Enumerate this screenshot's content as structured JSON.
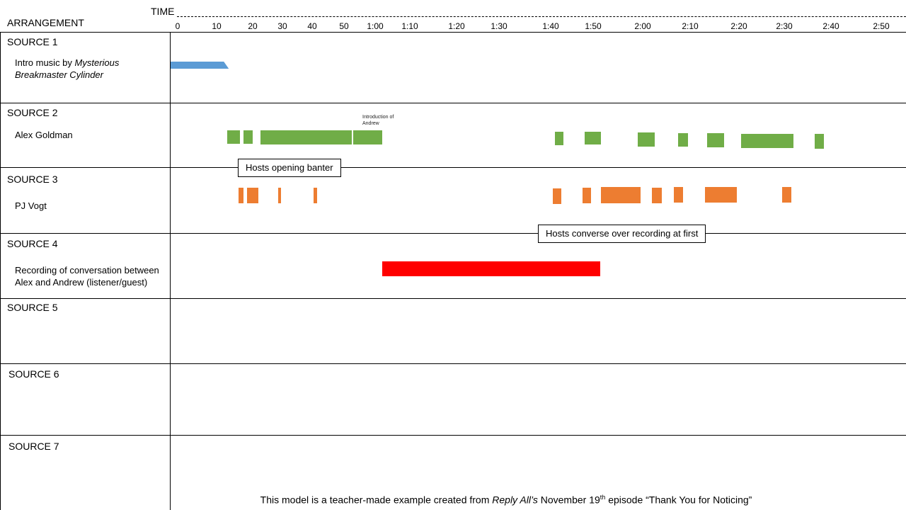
{
  "header": {
    "arrangement_label": "ARRANGEMENT",
    "time_label": "TIME",
    "ticks": [
      {
        "label": "0",
        "seconds": 0
      },
      {
        "label": "10",
        "seconds": 10
      },
      {
        "label": "20",
        "seconds": 20
      },
      {
        "label": "30",
        "seconds": 30
      },
      {
        "label": "40",
        "seconds": 40
      },
      {
        "label": "50",
        "seconds": 50
      },
      {
        "label": "1:00",
        "seconds": 60
      },
      {
        "label": "1:10",
        "seconds": 70
      },
      {
        "label": "1:20",
        "seconds": 80
      },
      {
        "label": "1:30",
        "seconds": 90
      },
      {
        "label": "1:40",
        "seconds": 100
      },
      {
        "label": "1:50",
        "seconds": 110
      },
      {
        "label": "2:00",
        "seconds": 120
      },
      {
        "label": "2:10",
        "seconds": 130
      },
      {
        "label": "2:20",
        "seconds": 140
      },
      {
        "label": "2:30",
        "seconds": 150
      },
      {
        "label": "2:40",
        "seconds": 160
      },
      {
        "label": "2:50",
        "seconds": 170
      }
    ]
  },
  "sources": [
    {
      "title": "SOURCE 1",
      "desc_line1_plain": "Intro music by ",
      "desc_line1_italic": "Mysterious",
      "desc_line2_italic": "Breakmaster Cylinder",
      "color": "#5b9bd5",
      "segments": [
        {
          "start": 0,
          "end": 12
        }
      ]
    },
    {
      "title": "SOURCE 2",
      "desc": "Alex Goldman",
      "color": "#70ad47",
      "note": "Introduction of Andrew",
      "segments": [
        {
          "start": 13,
          "end": 16.5
        },
        {
          "start": 17.5,
          "end": 20
        },
        {
          "start": 22.5,
          "end": 52.5
        },
        {
          "start": 53,
          "end": 62
        },
        {
          "start": 101,
          "end": 103
        },
        {
          "start": 108,
          "end": 111.5
        },
        {
          "start": 119,
          "end": 122.5
        },
        {
          "start": 127.5,
          "end": 129.5
        },
        {
          "start": 133.5,
          "end": 137
        },
        {
          "start": 140.5,
          "end": 152
        },
        {
          "start": 156.5,
          "end": 158.5
        }
      ]
    },
    {
      "title": "SOURCE 3",
      "desc": "PJ Vogt",
      "color": "#ed7d31",
      "segments": [
        {
          "start": 16,
          "end": 17.5
        },
        {
          "start": 18.5,
          "end": 22
        },
        {
          "start": 28.5,
          "end": 29.5
        },
        {
          "start": 40.5,
          "end": 41.5
        },
        {
          "start": 100.5,
          "end": 102.5
        },
        {
          "start": 107.5,
          "end": 109.5
        },
        {
          "start": 111.5,
          "end": 119.5
        },
        {
          "start": 122,
          "end": 124
        },
        {
          "start": 126.5,
          "end": 128.5
        },
        {
          "start": 133,
          "end": 139.5
        },
        {
          "start": 149.5,
          "end": 151.5
        }
      ]
    },
    {
      "title": "SOURCE 4",
      "desc_line1": "Recording of conversation between",
      "desc_line2": "Alex and Andrew (listener/guest)",
      "color": "#ff0000",
      "segments": [
        {
          "start": 62,
          "end": 111.5
        }
      ]
    },
    {
      "title": "SOURCE 5"
    },
    {
      "title": "SOURCE 6"
    },
    {
      "title": "SOURCE 7"
    }
  ],
  "callouts": {
    "banter": "Hosts opening banter",
    "converse": "Hosts converse over recording at first"
  },
  "footer": {
    "prefix": "This model is a teacher-made example created from ",
    "show_italic": "Reply All’s",
    "middle": " November  19",
    "sup": "th",
    "suffix": " episode “Thank You for Noticing”"
  }
}
